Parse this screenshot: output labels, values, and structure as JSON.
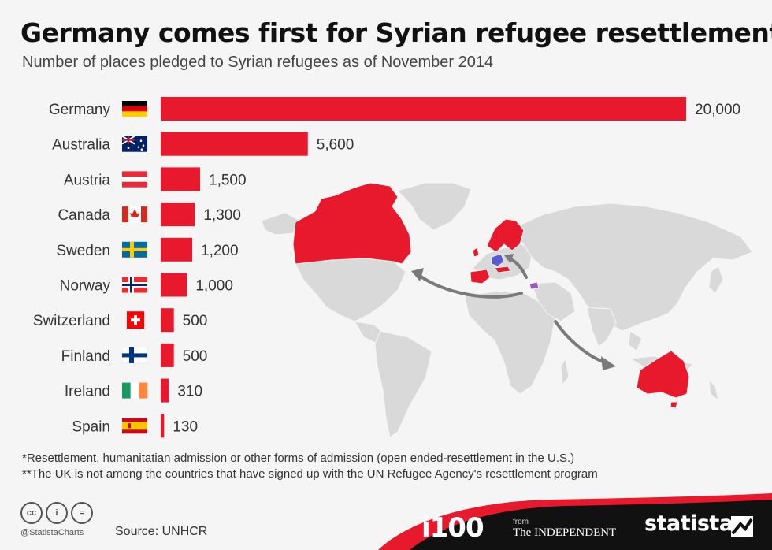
{
  "header": {
    "title": "Germany comes first for Syrian refugee resettlement",
    "subtitle": "Number of places pledged to Syrian refugees as of November 2014"
  },
  "chart_data": {
    "type": "bar",
    "orientation": "horizontal",
    "categories": [
      "Germany",
      "Australia",
      "Austria",
      "Canada",
      "Sweden",
      "Norway",
      "Switzerland",
      "Finland",
      "Ireland",
      "Spain"
    ],
    "values": [
      20000,
      5600,
      1500,
      1300,
      1200,
      1000,
      500,
      500,
      310,
      130
    ],
    "value_labels": [
      "20,000",
      "5,600",
      "1,500",
      "1,300",
      "1,200",
      "1,000",
      "500",
      "500",
      "310",
      "130"
    ],
    "xlim": [
      0,
      20000
    ],
    "grid": false,
    "bar_color": "#e8192c"
  },
  "notes": [
    "*Resettlement, humanitatian admission or other forms of admission (open ended-resettlement in the U.S.)",
    "**The UK is not among the countries that have signed up with the UN Refugee Agency's resettlement program"
  ],
  "footer": {
    "license_icons": [
      "cc-icon",
      "person-icon",
      "equals-icon"
    ],
    "license_text": [
      "cc",
      "i",
      "="
    ],
    "handle": "@StatistaCharts",
    "source": "Source: UNHCR",
    "partner_logo": "i100",
    "from_label": "from",
    "publisher": "The INDEPENDENT",
    "brand": "statista"
  },
  "colors": {
    "accent": "#e8192c",
    "map_land": "#d9d9d9",
    "map_highlight": "#e8192c",
    "germany_map": "#5b5bd6",
    "syria_map": "#9b59b6",
    "footer": "#111111"
  }
}
